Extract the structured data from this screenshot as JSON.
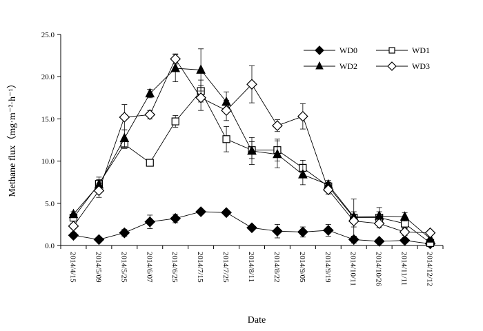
{
  "chart_data": {
    "type": "line",
    "xlabel": "Date",
    "ylabel": "Methane flux（mg·m⁻²·h⁻¹）",
    "ylim": [
      0,
      25
    ],
    "yticks": [
      "0.0",
      "5.0",
      "10.0",
      "15.0",
      "20.0",
      "25.0"
    ],
    "ytick_values": [
      0,
      5,
      10,
      15,
      20,
      25
    ],
    "categories": [
      "2014/4/15",
      "2014/5/09",
      "2014/5/25",
      "2014/6/07",
      "2014/6/25",
      "2014/7/15",
      "2014/7/25",
      "2014/8/11",
      "2014/8/22",
      "2014/9/05",
      "2014/9/19",
      "2014/10/11",
      "2014/10/26",
      "2014/11/11",
      "2014/12/12"
    ],
    "legend_position": "top-right",
    "grid": false,
    "series": [
      {
        "name": "WD0",
        "marker": "diamond-filled",
        "values": [
          1.2,
          0.7,
          1.5,
          2.8,
          3.2,
          4.0,
          3.9,
          2.1,
          1.7,
          1.6,
          1.8,
          0.7,
          0.5,
          0.6,
          0.2
        ],
        "errors": [
          0.3,
          0.2,
          0.4,
          0.8,
          0.5,
          0.3,
          0.2,
          0.2,
          0.8,
          0.6,
          0.7,
          0.4,
          0.2,
          0.2,
          0.1
        ]
      },
      {
        "name": "WD1",
        "marker": "square-open",
        "values": [
          3.3,
          7.3,
          12.0,
          9.8,
          14.7,
          18.3,
          12.6,
          11.3,
          11.3,
          9.2,
          7.0,
          3.3,
          3.3,
          2.6,
          0.3
        ],
        "errors": [
          0.3,
          0.8,
          0.5,
          0.3,
          0.7,
          1.3,
          1.5,
          1.0,
          1.3,
          0.9,
          0.5,
          2.2,
          0.7,
          0.5,
          0.2
        ]
      },
      {
        "name": "WD2",
        "marker": "triangle-filled",
        "values": [
          3.7,
          7.2,
          12.7,
          18.0,
          21.0,
          20.8,
          17.0,
          11.2,
          10.8,
          8.4,
          7.2,
          3.4,
          3.5,
          3.4,
          0.8
        ],
        "errors": [
          0.3,
          0.6,
          1.0,
          0.5,
          1.6,
          2.5,
          1.2,
          1.6,
          1.6,
          1.2,
          0.5,
          0.6,
          1.0,
          0.5,
          0.4
        ]
      },
      {
        "name": "WD3",
        "marker": "diamond-open",
        "values": [
          2.3,
          6.5,
          15.2,
          15.5,
          22.1,
          17.5,
          16.0,
          19.1,
          14.2,
          15.3,
          6.6,
          2.9,
          2.6,
          1.6,
          1.5
        ],
        "errors": [
          0.3,
          0.8,
          1.5,
          0.5,
          0.6,
          1.5,
          1.2,
          2.2,
          0.7,
          1.5,
          0.5,
          0.7,
          0.5,
          0.4,
          0.3
        ]
      }
    ]
  }
}
